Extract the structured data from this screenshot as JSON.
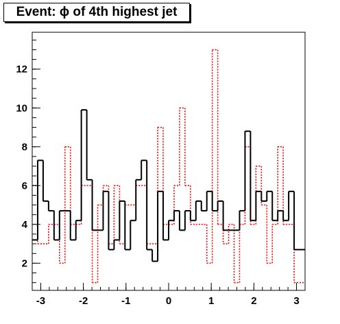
{
  "chart_data": {
    "type": "histogram",
    "title": "Event: ϕ of 4th highest jet",
    "xlabel": "",
    "ylabel": "",
    "xlim": [
      -3.2,
      3.2
    ],
    "ylim": [
      0.6,
      13.9
    ],
    "x_ticks": [
      "-3",
      "-2",
      "-1",
      "0",
      "1",
      "2",
      "3"
    ],
    "y_ticks": [
      "2",
      "4",
      "6",
      "8",
      "10",
      "12"
    ],
    "grid": false,
    "legend": "none",
    "bin_edges": [
      -3.2,
      -3.072,
      -2.944,
      -2.816,
      -2.688,
      -2.56,
      -2.432,
      -2.304,
      -2.176,
      -2.048,
      -1.92,
      -1.792,
      -1.664,
      -1.536,
      -1.408,
      -1.28,
      -1.152,
      -1.024,
      -0.896,
      -0.768,
      -0.64,
      -0.512,
      -0.384,
      -0.256,
      -0.128,
      0.0,
      0.128,
      0.256,
      0.384,
      0.512,
      0.64,
      0.768,
      0.896,
      1.024,
      1.152,
      1.28,
      1.408,
      1.536,
      1.664,
      1.792,
      1.92,
      2.048,
      2.176,
      2.304,
      2.432,
      2.56,
      2.688,
      2.816,
      2.944,
      3.072,
      3.2
    ],
    "series": [
      {
        "style": "solid-black",
        "color": "#000000",
        "values": [
          3.2,
          7.3,
          5.2,
          4.7,
          3.2,
          4.7,
          4.7,
          3.2,
          4.2,
          9.9,
          6.3,
          3.7,
          3.7,
          5.7,
          2.7,
          3.2,
          5.2,
          2.7,
          4.2,
          6.3,
          7.3,
          2.7,
          2.1,
          5.7,
          3.2,
          4.2,
          4.7,
          3.7,
          4.7,
          4.2,
          5.2,
          4.7,
          5.7,
          4.7,
          5.2,
          3.7,
          3.7,
          3.7,
          4.7,
          8.8,
          4.2,
          5.7,
          5.2,
          5.7,
          4.2,
          4.7,
          4.2,
          5.7,
          2.7,
          2.7
        ]
      },
      {
        "style": "dotted-red",
        "color": "#ff0000",
        "values": [
          6.0,
          3.0,
          3.0,
          4.0,
          4.0,
          2.0,
          8.0,
          4.0,
          4.0,
          6.0,
          6.0,
          1.0,
          5.0,
          6.0,
          3.0,
          6.0,
          3.0,
          5.0,
          5.0,
          6.0,
          6.0,
          3.0,
          3.0,
          9.0,
          4.0,
          4.0,
          6.0,
          10.0,
          6.0,
          4.0,
          4.0,
          4.0,
          2.0,
          13.0,
          4.0,
          3.0,
          4.0,
          1.0,
          4.0,
          8.0,
          4.0,
          7.0,
          5.0,
          2.0,
          4.0,
          8.0,
          4.0,
          4.0,
          1.0,
          1.0
        ]
      }
    ]
  }
}
